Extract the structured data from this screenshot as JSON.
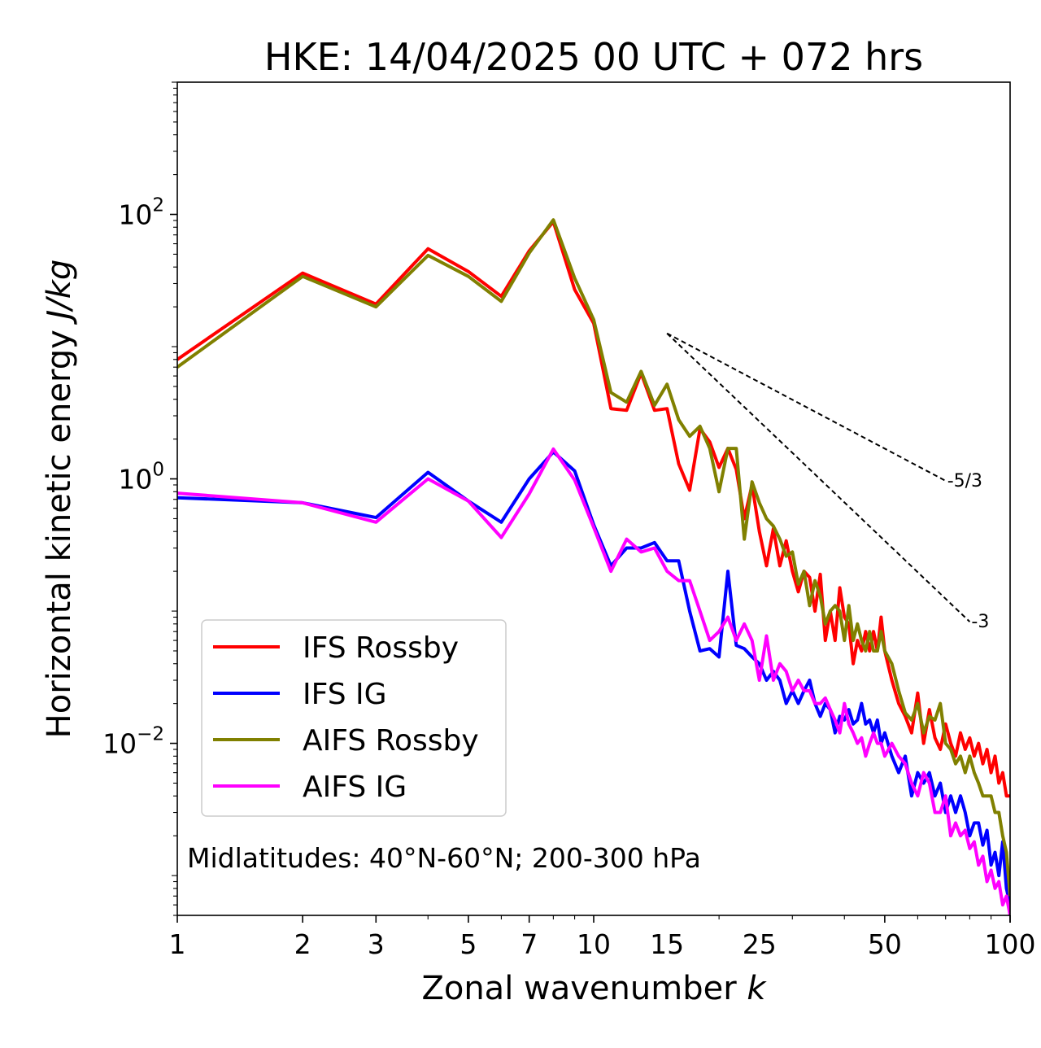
{
  "chart_data": {
    "type": "line",
    "title": "HKE: 14/04/2025 00 UTC + 072 hrs",
    "xlabel_text": "Zonal wavenumber ",
    "xlabel_var": "k",
    "ylabel_text": "Horizontal kinetic energy ",
    "ylabel_unit": "J/kg",
    "xscale": "log",
    "yscale": "log",
    "xlim": [
      1,
      100
    ],
    "ylim": [
      0.0005,
      1000
    ],
    "xticks": [
      1,
      2,
      3,
      5,
      7,
      10,
      15,
      25,
      50,
      100
    ],
    "xtick_labels": [
      "1",
      "2",
      "3",
      "5",
      "7",
      "10",
      "15",
      "25",
      "50",
      "100"
    ],
    "yticks": [
      0.01,
      1,
      100
    ],
    "ytick_labels": [
      {
        "base": "10",
        "exp": "−2"
      },
      {
        "base": "10",
        "exp": "0"
      },
      {
        "base": "10",
        "exp": "2"
      }
    ],
    "legend_position": "lower-left",
    "annotation": "Midlatitudes: 40°N-60°N; 200-300 hPa",
    "reference_slopes": [
      {
        "label": "-5/3",
        "slope": -1.6667,
        "k_start": 15,
        "k_end": 70,
        "e_start": 12.6
      },
      {
        "label": "-3",
        "slope": -3,
        "k_start": 15,
        "k_end": 80,
        "e_start": 12.6
      }
    ],
    "series": [
      {
        "name": "IFS Rossby",
        "color": "#ff0000",
        "x": [
          1,
          2,
          3,
          4,
          5,
          6,
          7,
          8,
          9,
          10,
          11,
          12,
          13,
          14,
          15,
          16,
          17,
          18,
          19,
          20,
          21,
          22,
          23,
          24,
          25,
          26,
          27,
          28,
          29,
          30,
          31,
          32,
          33,
          34,
          35,
          36,
          37,
          38,
          39,
          40,
          41,
          42,
          43,
          44,
          45,
          46,
          47,
          48,
          49,
          50,
          52,
          54,
          56,
          58,
          60,
          62,
          64,
          66,
          68,
          70,
          72,
          74,
          76,
          78,
          80,
          82,
          84,
          86,
          88,
          90,
          92,
          94,
          96,
          98,
          100
        ],
        "y": [
          8,
          36,
          21,
          55,
          37,
          24,
          53,
          88,
          27,
          15,
          3.4,
          3.3,
          6.3,
          3.3,
          3.4,
          1.3,
          0.82,
          2.4,
          1.9,
          1.22,
          1.7,
          1.18,
          0.5,
          0.9,
          0.4,
          0.22,
          0.42,
          0.22,
          0.34,
          0.2,
          0.14,
          0.2,
          0.18,
          0.1,
          0.19,
          0.06,
          0.1,
          0.06,
          0.15,
          0.09,
          0.08,
          0.04,
          0.06,
          0.05,
          0.07,
          0.05,
          0.07,
          0.05,
          0.09,
          0.05,
          0.03,
          0.02,
          0.016,
          0.012,
          0.024,
          0.01,
          0.018,
          0.011,
          0.009,
          0.014,
          0.01,
          0.008,
          0.012,
          0.009,
          0.011,
          0.008,
          0.01,
          0.007,
          0.009,
          0.006,
          0.008,
          0.005,
          0.006,
          0.004,
          0.004
        ]
      },
      {
        "name": "IFS IG",
        "color": "#0000ff",
        "x": [
          1,
          2,
          3,
          4,
          5,
          6,
          7,
          8,
          9,
          10,
          11,
          12,
          13,
          14,
          15,
          16,
          17,
          18,
          19,
          20,
          21,
          22,
          23,
          24,
          25,
          26,
          27,
          28,
          29,
          30,
          31,
          32,
          33,
          34,
          35,
          36,
          37,
          38,
          39,
          40,
          41,
          42,
          43,
          44,
          45,
          46,
          47,
          48,
          49,
          50,
          52,
          54,
          56,
          58,
          60,
          62,
          64,
          66,
          68,
          70,
          72,
          74,
          76,
          78,
          80,
          82,
          84,
          86,
          88,
          90,
          92,
          94,
          96,
          98,
          100
        ],
        "y": [
          0.72,
          0.66,
          0.51,
          1.12,
          0.68,
          0.47,
          1,
          1.6,
          1.15,
          0.45,
          0.22,
          0.3,
          0.3,
          0.33,
          0.24,
          0.24,
          0.1,
          0.05,
          0.052,
          0.045,
          0.2,
          0.055,
          0.052,
          0.045,
          0.04,
          0.03,
          0.035,
          0.03,
          0.02,
          0.025,
          0.02,
          0.025,
          0.03,
          0.02,
          0.016,
          0.02,
          0.018,
          0.012,
          0.016,
          0.015,
          0.018,
          0.014,
          0.015,
          0.02,
          0.014,
          0.015,
          0.012,
          0.015,
          0.01,
          0.012,
          0.008,
          0.006,
          0.008,
          0.004,
          0.006,
          0.005,
          0.006,
          0.004,
          0.005,
          0.003,
          0.004,
          0.003,
          0.004,
          0.003,
          0.002,
          0.0025,
          0.0025,
          0.0017,
          0.0022,
          0.0012,
          0.0015,
          0.001,
          0.0018,
          0.0008,
          0.0006
        ]
      },
      {
        "name": "AIFS Rossby",
        "color": "#808000",
        "x": [
          1,
          2,
          3,
          4,
          5,
          6,
          7,
          8,
          9,
          10,
          11,
          12,
          13,
          14,
          15,
          16,
          17,
          18,
          19,
          20,
          21,
          22,
          23,
          24,
          25,
          26,
          27,
          28,
          29,
          30,
          31,
          32,
          33,
          34,
          35,
          36,
          37,
          38,
          39,
          40,
          41,
          42,
          43,
          44,
          45,
          46,
          47,
          48,
          49,
          50,
          52,
          54,
          56,
          58,
          60,
          62,
          64,
          66,
          68,
          70,
          72,
          74,
          76,
          78,
          80,
          82,
          84,
          86,
          88,
          90,
          92,
          94,
          96,
          98,
          100
        ],
        "y": [
          7,
          34,
          20,
          49,
          34,
          22,
          51,
          91,
          33,
          16,
          4.5,
          3.8,
          6.5,
          3.6,
          5.2,
          2.8,
          2.1,
          2.5,
          1.7,
          0.8,
          1.7,
          1.7,
          0.35,
          0.95,
          0.66,
          0.5,
          0.44,
          0.35,
          0.26,
          0.28,
          0.16,
          0.2,
          0.11,
          0.17,
          0.13,
          0.08,
          0.1,
          0.11,
          0.1,
          0.06,
          0.11,
          0.06,
          0.08,
          0.06,
          0.05,
          0.07,
          0.05,
          0.05,
          0.07,
          0.05,
          0.04,
          0.025,
          0.017,
          0.015,
          0.02,
          0.012,
          0.016,
          0.015,
          0.02,
          0.01,
          0.009,
          0.007,
          0.008,
          0.006,
          0.008,
          0.006,
          0.005,
          0.004,
          0.004,
          0.004,
          0.003,
          0.003,
          0.002,
          0.0015,
          0.0007
        ]
      },
      {
        "name": "AIFS IG",
        "color": "#ff00ff",
        "x": [
          1,
          2,
          3,
          4,
          5,
          6,
          7,
          8,
          9,
          10,
          11,
          12,
          13,
          14,
          15,
          16,
          17,
          18,
          19,
          20,
          21,
          22,
          23,
          24,
          25,
          26,
          27,
          28,
          29,
          30,
          31,
          32,
          33,
          34,
          35,
          36,
          37,
          38,
          39,
          40,
          41,
          42,
          43,
          44,
          45,
          46,
          47,
          48,
          49,
          50,
          52,
          54,
          56,
          58,
          60,
          62,
          64,
          66,
          68,
          70,
          72,
          74,
          76,
          78,
          80,
          82,
          84,
          86,
          88,
          90,
          92,
          94,
          96,
          98,
          100
        ],
        "y": [
          0.78,
          0.66,
          0.47,
          1,
          0.68,
          0.36,
          0.77,
          1.68,
          0.98,
          0.43,
          0.2,
          0.35,
          0.28,
          0.3,
          0.2,
          0.17,
          0.17,
          0.1,
          0.06,
          0.07,
          0.09,
          0.06,
          0.08,
          0.06,
          0.03,
          0.065,
          0.03,
          0.04,
          0.035,
          0.025,
          0.03,
          0.025,
          0.025,
          0.02,
          0.02,
          0.022,
          0.018,
          0.015,
          0.012,
          0.02,
          0.014,
          0.012,
          0.01,
          0.011,
          0.008,
          0.01,
          0.012,
          0.01,
          0.01,
          0.008,
          0.01,
          0.008,
          0.007,
          0.005,
          0.004,
          0.006,
          0.005,
          0.003,
          0.003,
          0.004,
          0.002,
          0.0025,
          0.002,
          0.0022,
          0.0016,
          0.0018,
          0.0012,
          0.0014,
          0.0009,
          0.0011,
          0.0008,
          0.0009,
          0.0006,
          0.0007,
          0.0005
        ]
      }
    ]
  }
}
